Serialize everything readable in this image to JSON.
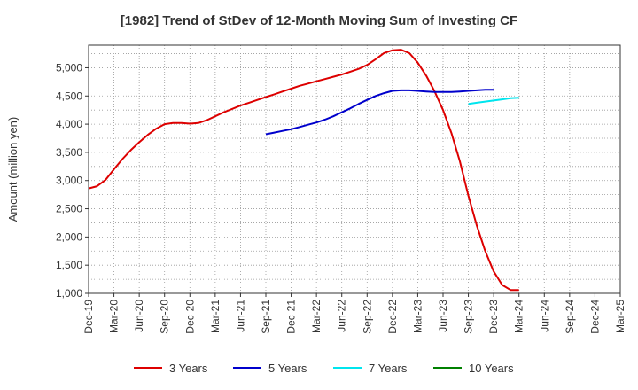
{
  "chart_data": {
    "type": "line",
    "title": "[1982]  Trend of StDev of 12-Month Moving Sum of Investing CF",
    "xlabel": "",
    "ylabel": "Amount (million yen)",
    "ylim": [
      1000,
      5400
    ],
    "yticks": [
      1000,
      1500,
      2000,
      2500,
      3000,
      3500,
      4000,
      4500,
      5000
    ],
    "ytick_labels": [
      "1,000",
      "1,500",
      "2,000",
      "2,500",
      "3,000",
      "3,500",
      "4,000",
      "4,500",
      "5,000"
    ],
    "xticks": [
      "Dec-19",
      "Mar-20",
      "Jun-20",
      "Sep-20",
      "Dec-20",
      "Mar-21",
      "Jun-21",
      "Sep-21",
      "Dec-21",
      "Mar-22",
      "Jun-22",
      "Sep-22",
      "Dec-22",
      "Mar-23",
      "Jun-23",
      "Sep-23",
      "Dec-23",
      "Mar-24",
      "Jun-24",
      "Sep-24",
      "Dec-24",
      "Mar-25"
    ],
    "grid": true,
    "legend_position": "bottom",
    "series": [
      {
        "name": "3 Years",
        "color": "#dd0000",
        "start_index": 0,
        "values": [
          2860,
          2900,
          3010,
          3200,
          3380,
          3540,
          3680,
          3810,
          3920,
          4000,
          4020,
          4020,
          4010,
          4020,
          4070,
          4140,
          4210,
          4270,
          4330,
          4380,
          4430,
          4480,
          4530,
          4580,
          4630,
          4680,
          4720,
          4760,
          4800,
          4840,
          4880,
          4930,
          4980,
          5050,
          5150,
          5260,
          5310,
          5320,
          5260,
          5090,
          4860,
          4580,
          4250,
          3840,
          3340,
          2730,
          2200,
          1750,
          1390,
          1150,
          1060,
          1060
        ]
      },
      {
        "name": "5 Years",
        "color": "#0000cc",
        "start_index": 21,
        "values": [
          3820,
          3850,
          3880,
          3910,
          3950,
          3990,
          4030,
          4080,
          4140,
          4210,
          4280,
          4360,
          4430,
          4500,
          4550,
          4590,
          4600,
          4600,
          4590,
          4580,
          4570,
          4570,
          4570,
          4580,
          4590,
          4600,
          4610,
          4610
        ]
      },
      {
        "name": "7 Years",
        "color": "#00e5ee",
        "start_index": 45,
        "values": [
          4360,
          4380,
          4400,
          4420,
          4440,
          4460,
          4470
        ]
      },
      {
        "name": "10 Years",
        "color": "#008000",
        "start_index": 0,
        "values": []
      }
    ]
  }
}
